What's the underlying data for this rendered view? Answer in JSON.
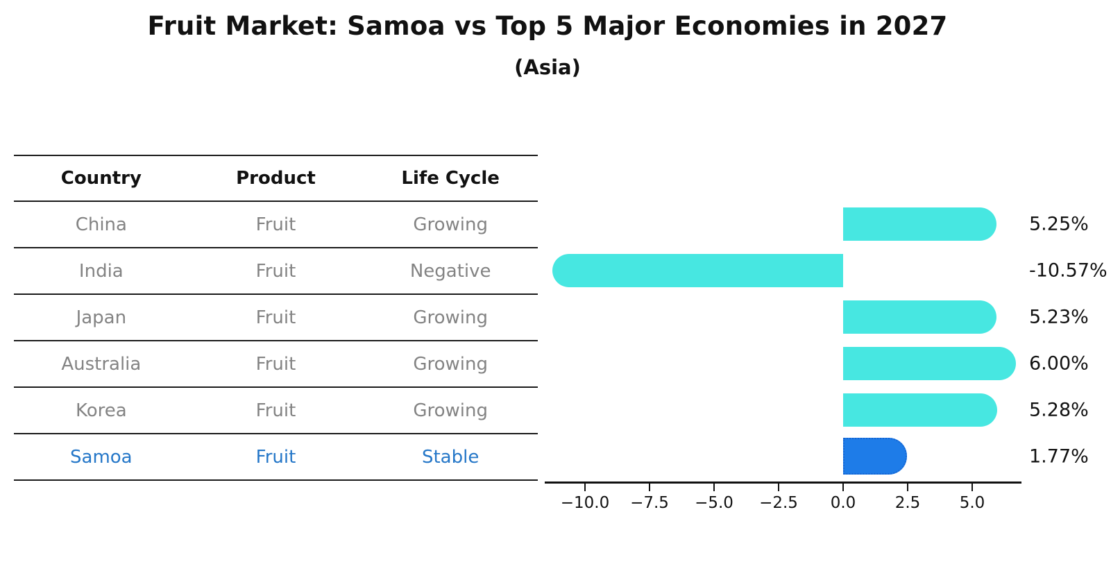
{
  "title": "Fruit Market: Samoa vs Top 5 Major Economies in 2027",
  "subtitle": "(Asia)",
  "table": {
    "headers": [
      "Country",
      "Product",
      "Life Cycle"
    ],
    "rows": [
      {
        "country": "China",
        "product": "Fruit",
        "life_cycle": "Growing",
        "highlight": false
      },
      {
        "country": "India",
        "product": "Fruit",
        "life_cycle": "Negative",
        "highlight": false
      },
      {
        "country": "Japan",
        "product": "Fruit",
        "life_cycle": "Growing",
        "highlight": false
      },
      {
        "country": "Australia",
        "product": "Fruit",
        "life_cycle": "Growing",
        "highlight": false
      },
      {
        "country": "Korea",
        "product": "Fruit",
        "life_cycle": "Growing",
        "highlight": false
      },
      {
        "country": "Samoa",
        "product": "Fruit",
        "life_cycle": "Stable",
        "highlight": true
      }
    ],
    "text_color": "#838383",
    "highlight_text_color": "#2577C8"
  },
  "chart_data": {
    "type": "bar",
    "orientation": "horizontal",
    "title": "Fruit Market: Samoa vs Top 5 Major Economies in 2027",
    "subtitle": "(Asia)",
    "categories": [
      "China",
      "India",
      "Japan",
      "Australia",
      "Korea",
      "Samoa"
    ],
    "values": [
      5.25,
      -10.57,
      5.23,
      6.0,
      5.28,
      1.77
    ],
    "value_labels": [
      "5.25%",
      "-10.57%",
      "5.23%",
      "6.00%",
      "5.28%",
      "1.77%"
    ],
    "highlight_index": 5,
    "x_tick_values": [
      -10.0,
      -7.5,
      -5.0,
      -2.5,
      0.0,
      2.5,
      5.0
    ],
    "x_tick_labels": [
      "−10.0",
      "−7.5",
      "−5.0",
      "−2.5",
      "0.0",
      "2.5",
      "5.0"
    ],
    "xlim": [
      -11.56,
      6.93
    ],
    "grid": false,
    "legend": false,
    "bar_color": "#47E7E1",
    "highlight_bar_color": "#1E7CE8",
    "highlight_bar_border_color": "#1464D2",
    "axis_color": "#111111"
  }
}
